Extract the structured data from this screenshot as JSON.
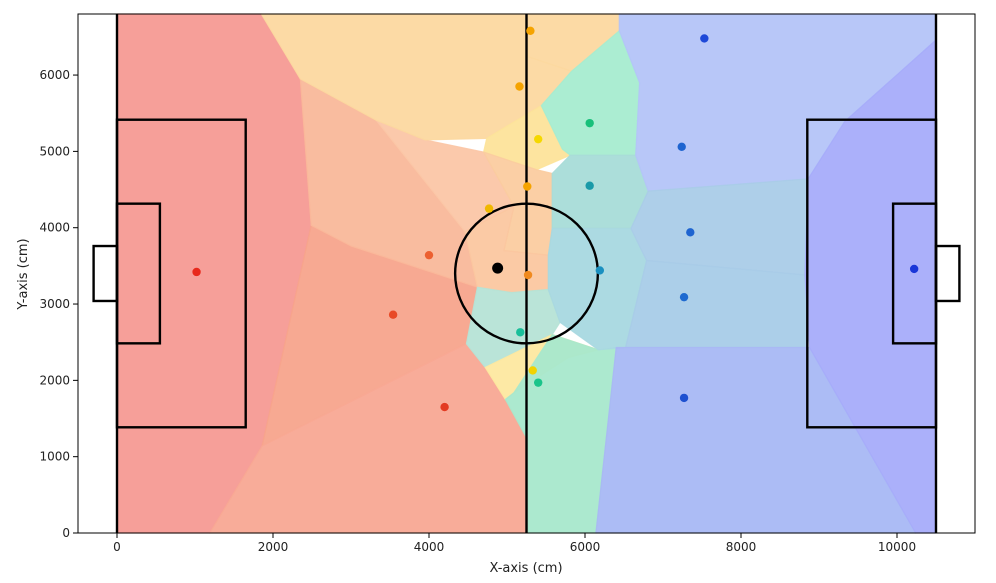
{
  "chart_data": {
    "type": "scatter",
    "title": "",
    "xlabel": "X-axis (cm)",
    "ylabel": "Y-axis (cm)",
    "xlim": [
      -500,
      11000
    ],
    "ylim": [
      0,
      6800
    ],
    "xticks": [
      0,
      2000,
      4000,
      6000,
      8000,
      10000
    ],
    "yticks": [
      0,
      1000,
      2000,
      3000,
      4000,
      5000,
      6000
    ],
    "grid": false,
    "pitch": {
      "length": 10500,
      "width": 6800,
      "center_circle_radius": 915,
      "penalty_box_depth": 1650,
      "penalty_box_y": [
        1385,
        5415
      ],
      "goal_area_depth": 550,
      "goal_area_y": [
        2485,
        4315
      ],
      "goal_depth": 300,
      "goal_y": [
        3040,
        3760
      ]
    },
    "ball": {
      "x": 4880,
      "y": 3470,
      "color": "#000000"
    },
    "players": [
      {
        "x": 1020,
        "y": 3420,
        "color": "#e8291c"
      },
      {
        "x": 3540,
        "y": 2860,
        "color": "#e84a26"
      },
      {
        "x": 4000,
        "y": 3640,
        "color": "#ec6030"
      },
      {
        "x": 4200,
        "y": 1650,
        "color": "#e33b22"
      },
      {
        "x": 4770,
        "y": 4250,
        "color": "#f0b800"
      },
      {
        "x": 5160,
        "y": 5850,
        "color": "#f5a300"
      },
      {
        "x": 5260,
        "y": 4540,
        "color": "#f5a300"
      },
      {
        "x": 5270,
        "y": 3380,
        "color": "#f08a20"
      },
      {
        "x": 5300,
        "y": 6580,
        "color": "#f5a300"
      },
      {
        "x": 5400,
        "y": 5160,
        "color": "#f5d800"
      },
      {
        "x": 5330,
        "y": 2130,
        "color": "#f2d200"
      },
      {
        "x": 5170,
        "y": 2630,
        "color": "#1abf9a"
      },
      {
        "x": 5400,
        "y": 1970,
        "color": "#1ac48a"
      },
      {
        "x": 6060,
        "y": 5370,
        "color": "#18c07a"
      },
      {
        "x": 6060,
        "y": 4550,
        "color": "#1a9aa8"
      },
      {
        "x": 6190,
        "y": 3440,
        "color": "#1a90c0"
      },
      {
        "x": 7240,
        "y": 5060,
        "color": "#1e64d0"
      },
      {
        "x": 7270,
        "y": 3090,
        "color": "#1e6ad0"
      },
      {
        "x": 7270,
        "y": 1770,
        "color": "#1e50d0"
      },
      {
        "x": 7350,
        "y": 3940,
        "color": "#1e64d0"
      },
      {
        "x": 7530,
        "y": 6480,
        "color": "#1e48d8"
      },
      {
        "x": 10220,
        "y": 3460,
        "color": "#1a36d8"
      }
    ],
    "regions": [
      {
        "color": "#f69a94",
        "points": [
          [
            0,
            6800
          ],
          [
            1850,
            6800
          ],
          [
            2350,
            5950
          ],
          [
            2490,
            4030
          ],
          [
            1860,
            1140
          ],
          [
            1190,
            0
          ],
          [
            0,
            0
          ]
        ]
      },
      {
        "color": "#f7a48c",
        "points": [
          [
            1860,
            1140
          ],
          [
            4480,
            2480
          ],
          [
            4620,
            3220
          ],
          [
            3000,
            3760
          ],
          [
            2490,
            4030
          ]
        ]
      },
      {
        "color": "#f9b89a",
        "points": [
          [
            2490,
            4030
          ],
          [
            3000,
            3760
          ],
          [
            4620,
            3220
          ],
          [
            4460,
            3950
          ],
          [
            3320,
            5410
          ],
          [
            2350,
            5950
          ]
        ]
      },
      {
        "color": "#f8a894",
        "points": [
          [
            1190,
            0
          ],
          [
            5270,
            0
          ],
          [
            5270,
            1210
          ],
          [
            4980,
            1750
          ],
          [
            4720,
            2170
          ],
          [
            4480,
            2480
          ],
          [
            1860,
            1140
          ]
        ]
      },
      {
        "color": "#fbc6a6",
        "points": [
          [
            3320,
            5410
          ],
          [
            4460,
            3950
          ],
          [
            5090,
            4280
          ],
          [
            4700,
            4990
          ],
          [
            3950,
            5150
          ]
        ]
      },
      {
        "color": "#fcd8a0",
        "points": [
          [
            1850,
            6800
          ],
          [
            5270,
            6800
          ],
          [
            5270,
            6240
          ],
          [
            5830,
            6050
          ],
          [
            5440,
            5600
          ],
          [
            4740,
            5170
          ],
          [
            3950,
            5150
          ],
          [
            3320,
            5410
          ],
          [
            2350,
            5950
          ]
        ]
      },
      {
        "color": "#fcd8a0",
        "points": [
          [
            5270,
            6800
          ],
          [
            6440,
            6800
          ],
          [
            6440,
            6580
          ],
          [
            5830,
            6050
          ],
          [
            5270,
            6240
          ]
        ]
      },
      {
        "color": "#fde39a",
        "points": [
          [
            4740,
            5170
          ],
          [
            5440,
            5600
          ],
          [
            5710,
            5030
          ],
          [
            5810,
            4950
          ],
          [
            5380,
            4760
          ],
          [
            4700,
            4990
          ]
        ]
      },
      {
        "color": "#fbcca0",
        "points": [
          [
            4700,
            4990
          ],
          [
            5380,
            4760
          ],
          [
            5580,
            4710
          ],
          [
            5580,
            3990
          ],
          [
            5530,
            3640
          ],
          [
            4960,
            3700
          ],
          [
            5090,
            4280
          ]
        ]
      },
      {
        "color": "#fbc7a0",
        "points": [
          [
            4460,
            3950
          ],
          [
            4620,
            3220
          ],
          [
            5060,
            3150
          ],
          [
            5530,
            3190
          ],
          [
            5530,
            3640
          ],
          [
            4960,
            3700
          ],
          [
            5090,
            4280
          ]
        ]
      },
      {
        "color": "#b6e3d6",
        "points": [
          [
            4480,
            2480
          ],
          [
            4620,
            3220
          ],
          [
            5060,
            3150
          ],
          [
            5530,
            3190
          ],
          [
            5680,
            2760
          ],
          [
            5580,
            2600
          ],
          [
            4720,
            2170
          ]
        ]
      },
      {
        "color": "#fde8a0",
        "points": [
          [
            4720,
            2170
          ],
          [
            5580,
            2600
          ],
          [
            6170,
            2400
          ],
          [
            5790,
            2300
          ],
          [
            5090,
            1840
          ],
          [
            4980,
            1750
          ]
        ]
      },
      {
        "color": "#a8e8cc",
        "points": [
          [
            5270,
            0
          ],
          [
            6140,
            0
          ],
          [
            6400,
            2430
          ],
          [
            6170,
            2400
          ],
          [
            5580,
            2600
          ],
          [
            5090,
            1840
          ],
          [
            4980,
            1750
          ],
          [
            5270,
            1210
          ]
        ]
      },
      {
        "color": "#a6ecd0",
        "points": [
          [
            5440,
            5600
          ],
          [
            5830,
            6050
          ],
          [
            6440,
            6580
          ],
          [
            6700,
            5900
          ],
          [
            6650,
            4950
          ],
          [
            5810,
            4950
          ],
          [
            5710,
            5030
          ]
        ]
      },
      {
        "color": "#a8dcd8",
        "points": [
          [
            5580,
            4710
          ],
          [
            5810,
            4950
          ],
          [
            6650,
            4950
          ],
          [
            6810,
            4480
          ],
          [
            6590,
            3990
          ],
          [
            5580,
            3990
          ]
        ]
      },
      {
        "color": "#a8d8e0",
        "points": [
          [
            5530,
            3640
          ],
          [
            5580,
            3990
          ],
          [
            6590,
            3990
          ],
          [
            6790,
            3570
          ],
          [
            6520,
            2430
          ],
          [
            6170,
            2400
          ],
          [
            5680,
            2760
          ],
          [
            5530,
            3190
          ]
        ]
      },
      {
        "color": "#b4c4f8",
        "points": [
          [
            6440,
            6800
          ],
          [
            10500,
            6800
          ],
          [
            10500,
            6460
          ],
          [
            9330,
            5390
          ],
          [
            8860,
            4640
          ],
          [
            6810,
            4480
          ],
          [
            6650,
            4950
          ],
          [
            6700,
            5900
          ],
          [
            6440,
            6580
          ]
        ]
      },
      {
        "color": "#aacce8",
        "points": [
          [
            6810,
            4480
          ],
          [
            8860,
            4640
          ],
          [
            8820,
            3380
          ],
          [
            6790,
            3570
          ],
          [
            6590,
            3990
          ]
        ]
      },
      {
        "color": "#a8cce8",
        "points": [
          [
            6790,
            3570
          ],
          [
            8820,
            3380
          ],
          [
            8860,
            2430
          ],
          [
            6520,
            2430
          ]
        ]
      },
      {
        "color": "#a8b8f4",
        "points": [
          [
            6140,
            0
          ],
          [
            10240,
            0
          ],
          [
            8880,
            2430
          ],
          [
            6400,
            2430
          ]
        ]
      },
      {
        "color": "#a6acfa",
        "points": [
          [
            10500,
            6460
          ],
          [
            10500,
            0
          ],
          [
            10240,
            0
          ],
          [
            8880,
            2430
          ],
          [
            8820,
            3380
          ],
          [
            8860,
            4640
          ],
          [
            9330,
            5390
          ]
        ]
      }
    ]
  }
}
